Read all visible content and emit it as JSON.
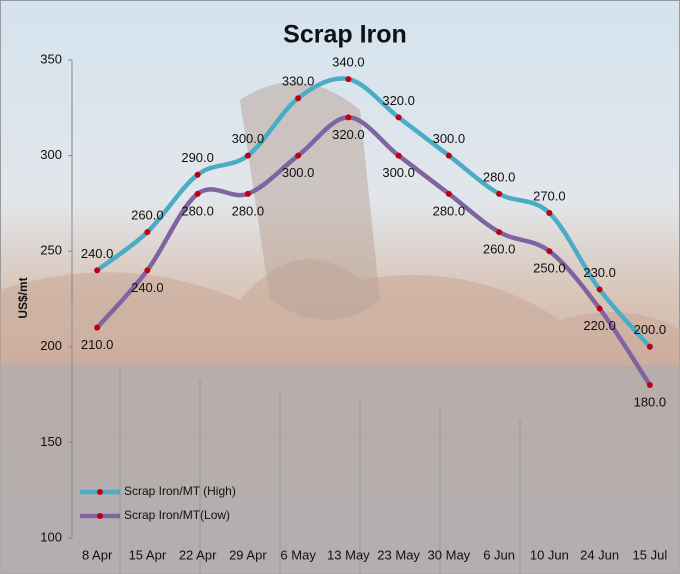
{
  "chart_data": {
    "type": "line",
    "title": "Scrap Iron",
    "y_label": "US$/mt",
    "categories": [
      "8 Apr",
      "15 Apr",
      "22 Apr",
      "29 Apr",
      "6 May",
      "13 May",
      "23 May",
      "30 May",
      "6 Jun",
      "10 Jun",
      "24 Jun",
      "15 Jul"
    ],
    "series": [
      {
        "name": "Scrap Iron/MT (High)",
        "color": "#4bacc6",
        "marker_color": "#c0000f",
        "values": [
          240,
          260,
          290,
          300,
          330,
          340,
          320,
          300,
          280,
          270,
          230,
          200
        ],
        "value_labels": [
          "240.0",
          "260.0",
          "290.0",
          "300.0",
          "330.0",
          "340.0",
          "320.0",
          "300.0",
          "280.0",
          "270.0",
          "230.0",
          "200.0"
        ]
      },
      {
        "name": "Scrap Iron/MT(Low)",
        "color": "#8064a2",
        "marker_color": "#c0000f",
        "values": [
          210,
          240,
          280,
          280,
          300,
          320,
          300,
          280,
          260,
          250,
          220,
          180
        ],
        "value_labels": [
          "210.0",
          "240.0",
          "280.0",
          "280.0",
          "300.0",
          "320.0",
          "300.0",
          "280.0",
          "260.0",
          "250.0",
          "220.0",
          "180.0"
        ]
      }
    ],
    "ylim": [
      100,
      350
    ],
    "yticks": [
      100,
      150,
      200,
      250,
      300,
      350
    ],
    "grid": false,
    "smooth": true,
    "legend": "lower left"
  }
}
